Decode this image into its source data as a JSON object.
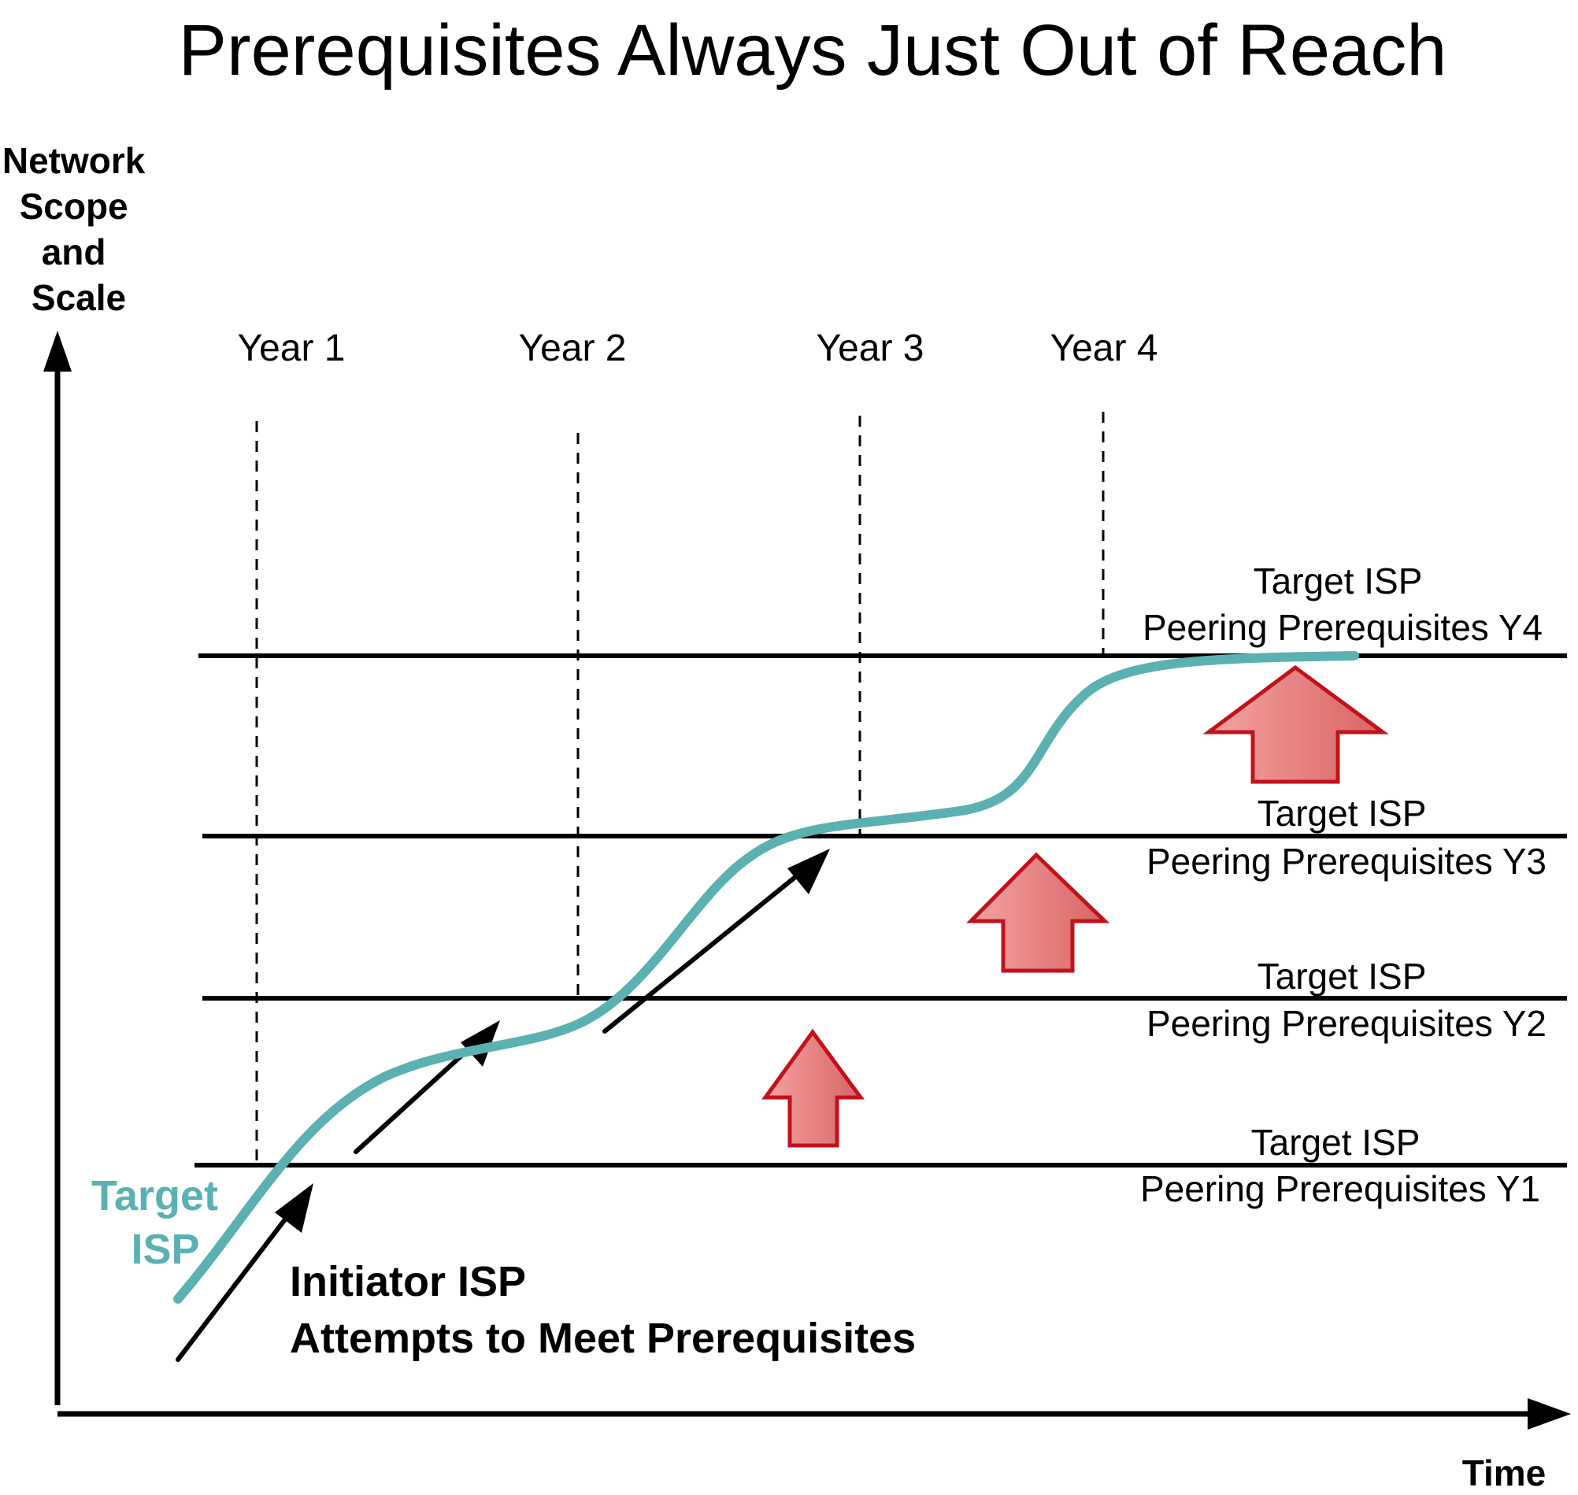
{
  "title": "Prerequisites Always Just Out of Reach",
  "y_axis_label": [
    "Network",
    "Scope",
    "and",
    "Scale"
  ],
  "x_axis_label": "Time",
  "years": [
    "Year 1",
    "Year 2",
    "Year 3",
    "Year 4"
  ],
  "levels": [
    {
      "line1": "Target ISP",
      "line2": "Peering Prerequisites Y1"
    },
    {
      "line1": "Target ISP",
      "line2": "Peering Prerequisites Y2"
    },
    {
      "line1": "Target ISP",
      "line2": "Peering Prerequisites Y3"
    },
    {
      "line1": "Target ISP",
      "line2": "Peering Prerequisites Y4"
    }
  ],
  "target_isp_label": [
    "Target",
    "ISP"
  ],
  "initiator_label": [
    "Initiator ISP",
    "Attempts to Meet Prerequisites"
  ],
  "colors": {
    "curve": "#5bb1b1",
    "arrow_fill_light": "#f4a3a3",
    "arrow_fill_dark": "#d96464",
    "arrow_stroke": "#c1121c",
    "line": "#000000"
  }
}
